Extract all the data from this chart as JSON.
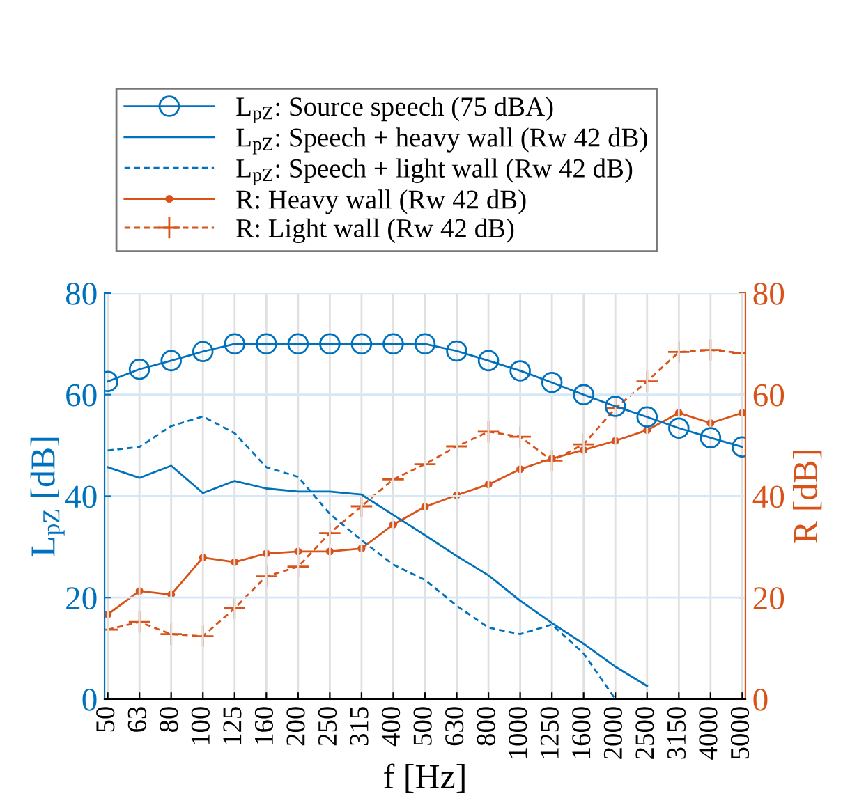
{
  "chart_data": {
    "type": "line",
    "xlabel": "f [Hz]",
    "ylabel": "L$_{pZ}$ [dB]",
    "y2label": "R [dB]",
    "categories": [
      "50",
      "63",
      "80",
      "100",
      "125",
      "160",
      "200",
      "250",
      "315",
      "400",
      "500",
      "630",
      "800",
      "1000",
      "1250",
      "1600",
      "2000",
      "2500",
      "3150",
      "4000",
      "5000"
    ],
    "ylim": [
      0,
      80
    ],
    "yticks": [
      0,
      20,
      40,
      60,
      80
    ],
    "y2lim": [
      0,
      80
    ],
    "y2ticks": [
      0,
      20,
      40,
      60,
      80
    ],
    "grid": true,
    "legend": "top",
    "series": [
      {
        "name": "L$_{pZ}$: Source speech (75 dBA)",
        "color": "#0072bd",
        "marker": "circle",
        "line_style": "solid",
        "values": [
          62.6,
          65,
          66.7,
          68.5,
          70,
          70,
          70,
          70,
          70,
          70,
          70,
          68.6,
          66.7,
          64.7,
          62.4,
          60,
          57.7,
          55.6,
          53.4,
          51.5,
          49.7
        ]
      },
      {
        "name": "L$_{pZ}$: Speech + heavy wall (Rw 42 dB)",
        "color": "#0072bd",
        "marker": "none",
        "line_style": "solid",
        "values": [
          45.7,
          43.6,
          46,
          40.6,
          43,
          41.5,
          40.9,
          40.9,
          40.3,
          36.3,
          32.3,
          28.2,
          24.4,
          19.4,
          15,
          10.9,
          6.4,
          2.6,
          null,
          null,
          null
        ]
      },
      {
        "name": "L$_{pZ}$: Speech + light wall (Rw 42 dB)",
        "color": "#0072bd",
        "marker": "none",
        "line_style": "dashed",
        "values": [
          49,
          49.7,
          53.8,
          55.7,
          52.4,
          45.7,
          43.8,
          36.5,
          31.3,
          26.5,
          23.5,
          18.4,
          14.1,
          12.8,
          14.7,
          9,
          0,
          null,
          null,
          null,
          null
        ]
      },
      {
        "name": "R: Heavy wall (Rw 42 dB)",
        "color": "#d95319",
        "marker": "circle",
        "line_style": "solid",
        "axis": "y2",
        "values": [
          16.7,
          21.3,
          20.6,
          27.9,
          27,
          28.7,
          29.1,
          29.1,
          29.7,
          34.4,
          37.9,
          40.2,
          42.3,
          45.3,
          47.4,
          49.1,
          50.9,
          53,
          56.4,
          54.4,
          56.4
        ]
      },
      {
        "name": "R: Light wall (Rw 42 dB)",
        "color": "#d95319",
        "marker": "cross",
        "line_style": "dashed",
        "axis": "y2",
        "values": [
          13.7,
          15.2,
          12.8,
          12.4,
          17.9,
          24.2,
          26.1,
          32.7,
          38,
          43.3,
          46.3,
          49.8,
          52.7,
          51.7,
          47,
          50.2,
          57.3,
          62.6,
          68.4,
          68.8,
          68.2
        ]
      }
    ]
  }
}
